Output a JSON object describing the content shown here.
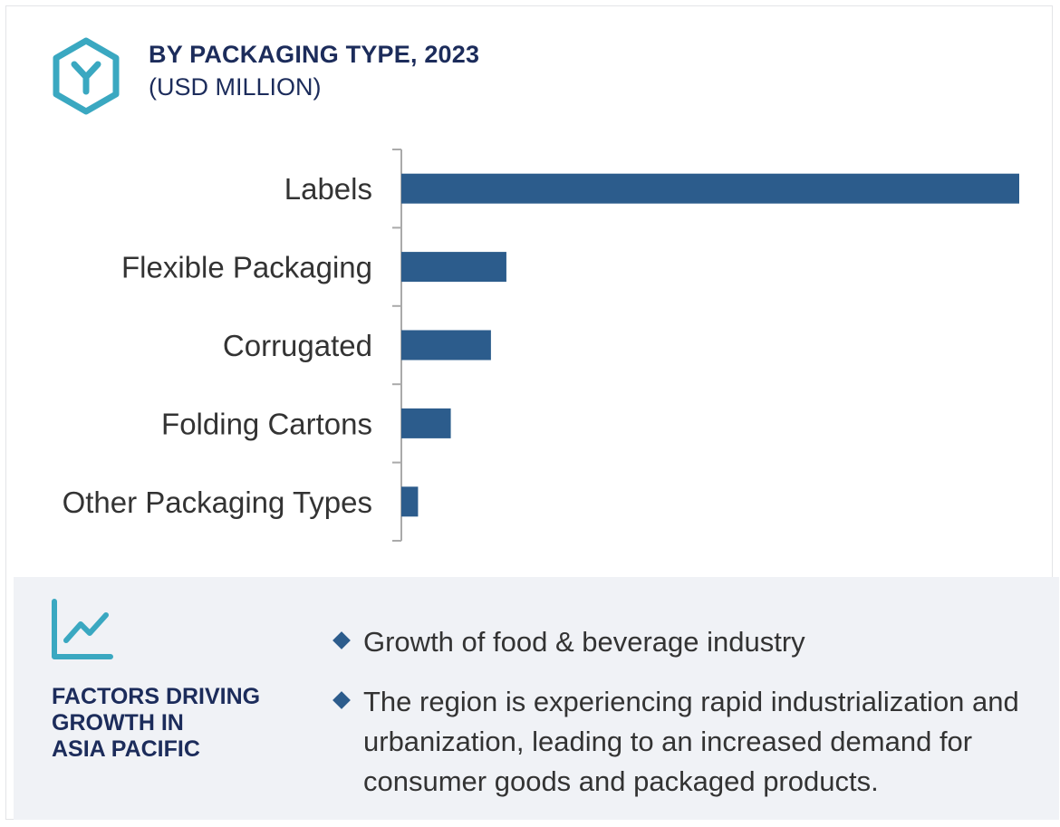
{
  "header": {
    "title": "BY PACKAGING TYPE, 2023",
    "subtitle": "(USD MILLION)",
    "icon": "hexagon-y-logo-icon",
    "accent_color": "#3aa8c1"
  },
  "chart_data": {
    "type": "bar",
    "orientation": "horizontal",
    "title": "BY PACKAGING TYPE, 2023",
    "subtitle": "(USD MILLION)",
    "categories": [
      "Labels",
      "Flexible Packaging",
      "Corrugated",
      "Folding Cartons",
      "Other Packaging Types"
    ],
    "values": [
      100,
      17,
      14.5,
      8,
      2.7
    ],
    "xlim": [
      0,
      100
    ],
    "grid": false,
    "bar_color": "#2c5c8c",
    "value_labels_shown": false
  },
  "factors": {
    "icon": "trend-line-chart-icon",
    "title_lines": [
      "FACTORS DRIVING",
      "GROWTH IN",
      "ASIA PACIFIC"
    ],
    "bullets": [
      "Growth of food & beverage industry",
      "The region is experiencing rapid industrialization and urbanization, leading to an increased demand for consumer goods and packaged products."
    ],
    "bullet_color": "#2c5c8c",
    "panel_color": "#f0f2f6"
  }
}
